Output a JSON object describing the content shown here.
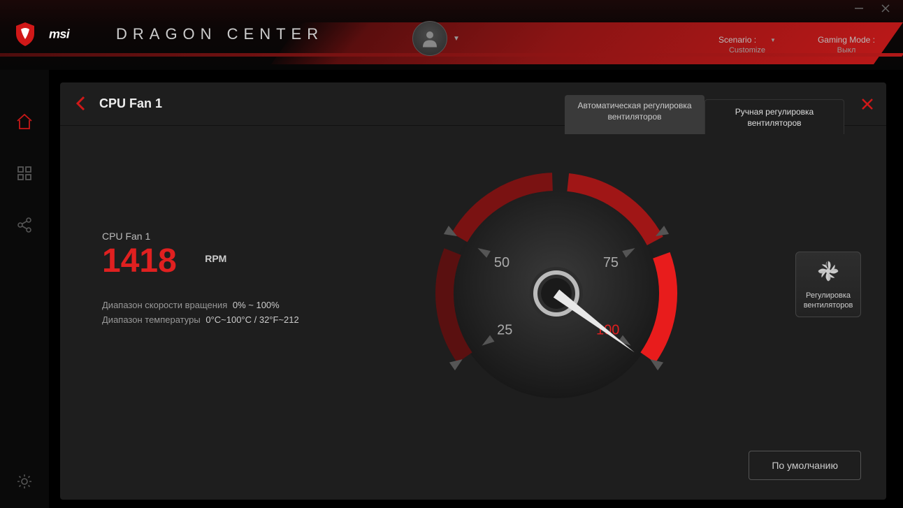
{
  "brand": {
    "name": "msi",
    "product": "DRAGON CENTER"
  },
  "header": {
    "scenario_label": "Scenario :",
    "scenario_value": "Customize",
    "gaming_mode_label": "Gaming Mode :",
    "gaming_mode_value": "Выкл"
  },
  "page": {
    "title": "CPU Fan 1"
  },
  "tabs": {
    "auto": "Автоматическая регулировка вентиляторов",
    "manual": "Ручная регулировка вентиляторов",
    "active": "manual"
  },
  "fan": {
    "label": "CPU Fan 1",
    "rpm_value": "1418",
    "rpm_unit": "RPM",
    "speed_range_label": "Диапазон скорости вращения",
    "speed_range_value": "0% ~ 100%",
    "temp_range_label": "Диапазон температуры",
    "temp_range_value": "0°C~100°C / 32°F~212"
  },
  "gauge": {
    "ticks": [
      {
        "label": "25",
        "angle": 215,
        "hot": false
      },
      {
        "label": "50",
        "angle": 150,
        "hot": false
      },
      {
        "label": "75",
        "angle": 30,
        "hot": false
      },
      {
        "label": "100",
        "angle": 325,
        "hot": true
      }
    ],
    "needle_angle": 323,
    "arc_color_cool": "#5a1010",
    "arc_color_mid": "#a01616",
    "arc_color_hot": "#e81c1c",
    "background": "#1e1e1e",
    "face_gradient_inner": "#3a3a3a",
    "face_gradient_outer": "#181818"
  },
  "side_button": {
    "label": "Регулировка вентиляторов"
  },
  "default_button": "По умолчанию",
  "colors": {
    "accent_red": "#d01818",
    "text_primary": "#eeeeee",
    "text_muted": "#999999",
    "panel_bg": "#1e1e1e"
  }
}
